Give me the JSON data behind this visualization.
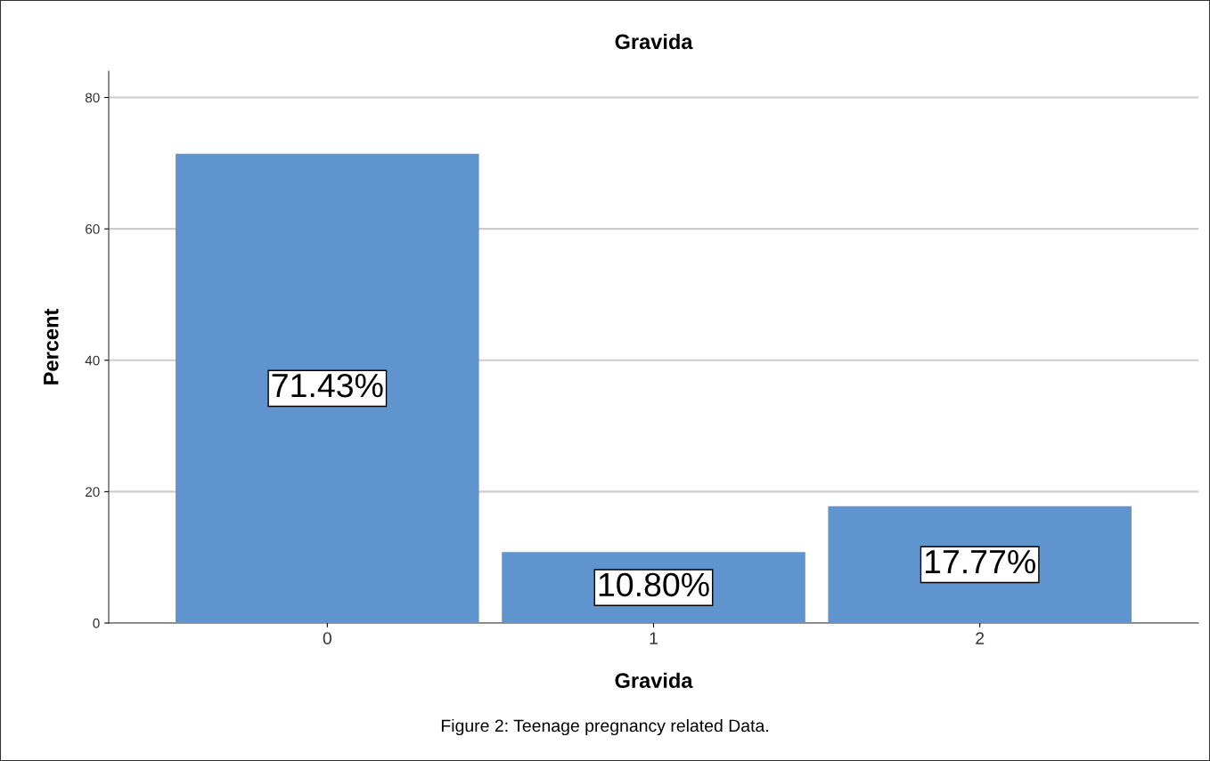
{
  "chart_data": {
    "type": "bar",
    "title": "Gravida",
    "xlabel": "Gravida",
    "ylabel": "Percent",
    "categories": [
      "0",
      "1",
      "2"
    ],
    "values": [
      71.43,
      10.8,
      17.77
    ],
    "value_labels": [
      "71.43%",
      "10.80%",
      "17.77%"
    ],
    "color": "#5f94cf",
    "ylim": [
      0,
      84
    ],
    "yticks": [
      0,
      20,
      40,
      60,
      80
    ],
    "grid": "y",
    "annotations": [
      "Figure 2: Teenage pregnancy related Data."
    ]
  }
}
